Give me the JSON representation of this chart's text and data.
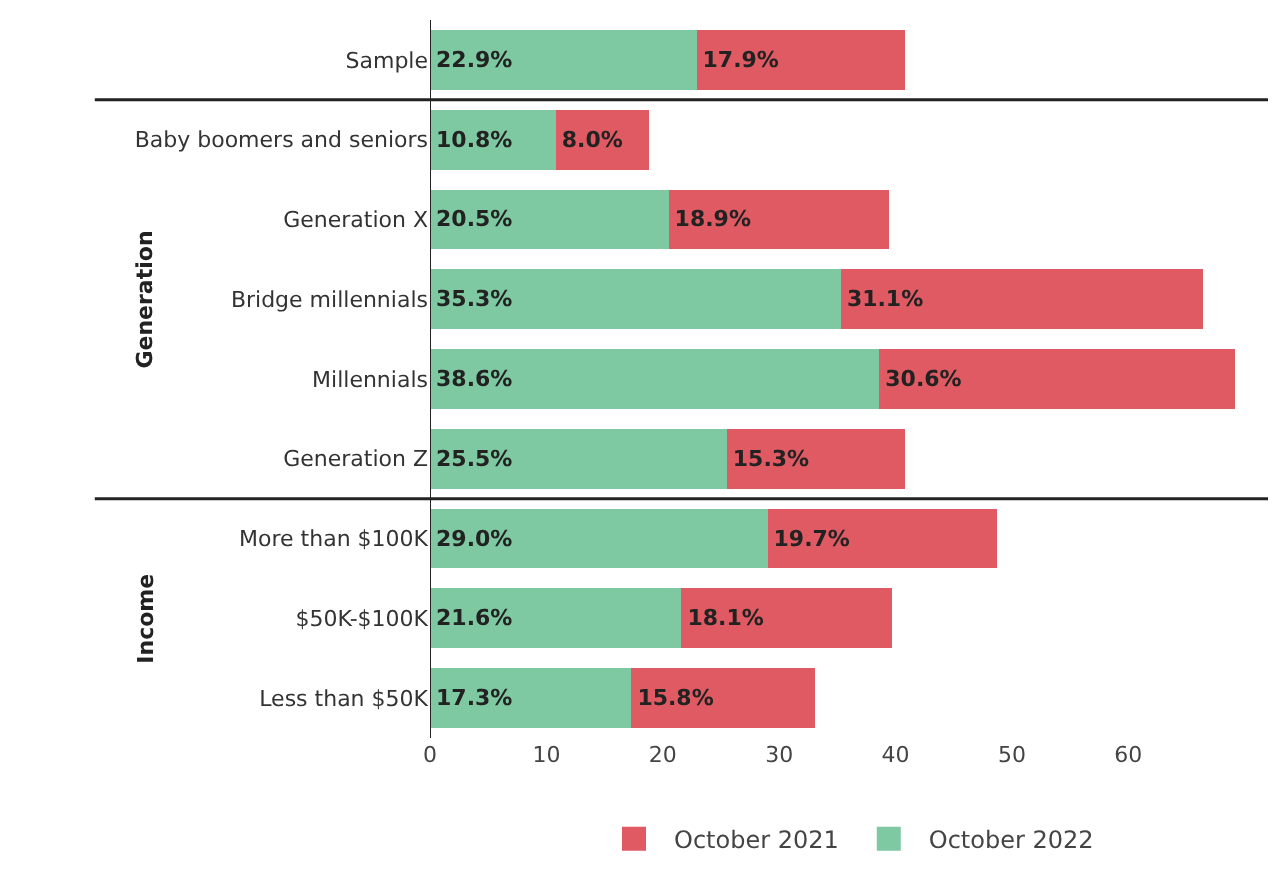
{
  "chart_data": {
    "type": "bar",
    "orientation": "horizontal",
    "stacked": true,
    "categories": [
      "Sample",
      "Baby boomers and seniors",
      "Generation X",
      "Bridge millennials",
      "Millennials",
      "Generation Z",
      "More than $100K",
      "$50K-$100K",
      "Less than $50K"
    ],
    "series": [
      {
        "name": "October 2022",
        "color": "#7fc9a2",
        "values": [
          22.9,
          10.8,
          20.5,
          35.3,
          38.6,
          25.5,
          29.0,
          21.6,
          17.3
        ],
        "value_labels": [
          "22.9%",
          "10.8%",
          "20.5%",
          "35.3%",
          "38.6%",
          "25.5%",
          "29.0%",
          "21.6%",
          "17.3%"
        ]
      },
      {
        "name": "October 2021",
        "color": "#df5a62",
        "values": [
          17.9,
          8.0,
          18.9,
          31.1,
          30.6,
          15.3,
          19.7,
          18.1,
          15.8
        ],
        "value_labels": [
          "17.9%",
          "8.0%",
          "18.9%",
          "31.1%",
          "30.6%",
          "15.3%",
          "19.7%",
          "18.1%",
          "15.8%"
        ]
      }
    ],
    "xlim": [
      0,
      72
    ],
    "xticks": [
      0,
      10,
      20,
      30,
      40,
      50,
      60
    ],
    "grid": false,
    "legend": "bottom",
    "annotations": [
      "Generation",
      "Income"
    ]
  }
}
